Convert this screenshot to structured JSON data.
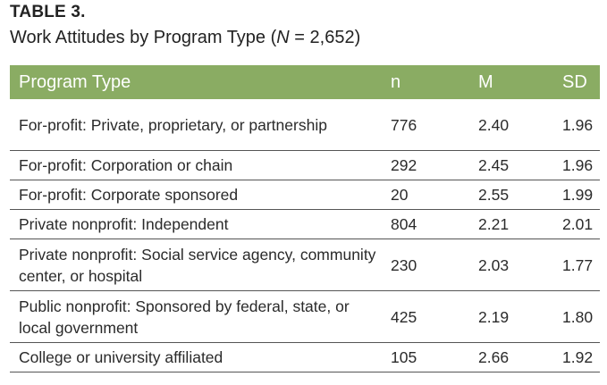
{
  "table_label": "TABLE 3.",
  "caption": {
    "prefix": "Work Attitudes by Program Type (",
    "n_symbol": "N",
    "suffix": " = 2,652)"
  },
  "table": {
    "columns": [
      "Program Type",
      "n",
      "M",
      "SD"
    ],
    "rows": [
      {
        "type": "For-profit: Private, proprietary, or partnership",
        "n": "776",
        "m": "2.40",
        "sd": "1.96"
      },
      {
        "type": "For-profit: Corporation or chain",
        "n": "292",
        "m": "2.45",
        "sd": "1.96"
      },
      {
        "type": "For-profit: Corporate sponsored",
        "n": "20",
        "m": "2.55",
        "sd": "1.99"
      },
      {
        "type": "Private nonprofit: Independent",
        "n": "804",
        "m": "2.21",
        "sd": "2.01"
      },
      {
        "type": "Private nonprofit: Social service agency, community center, or hospital",
        "n": "230",
        "m": "2.03",
        "sd": "1.77"
      },
      {
        "type": "Public nonprofit: Sponsored by federal, state, or local government",
        "n": "425",
        "m": "2.19",
        "sd": "1.80"
      },
      {
        "type": "College or university affiliated",
        "n": "105",
        "m": "2.66",
        "sd": "1.92"
      }
    ]
  },
  "colors": {
    "header_bg": "#8aac63",
    "header_text": "#ffffff",
    "rule": "#555555"
  }
}
